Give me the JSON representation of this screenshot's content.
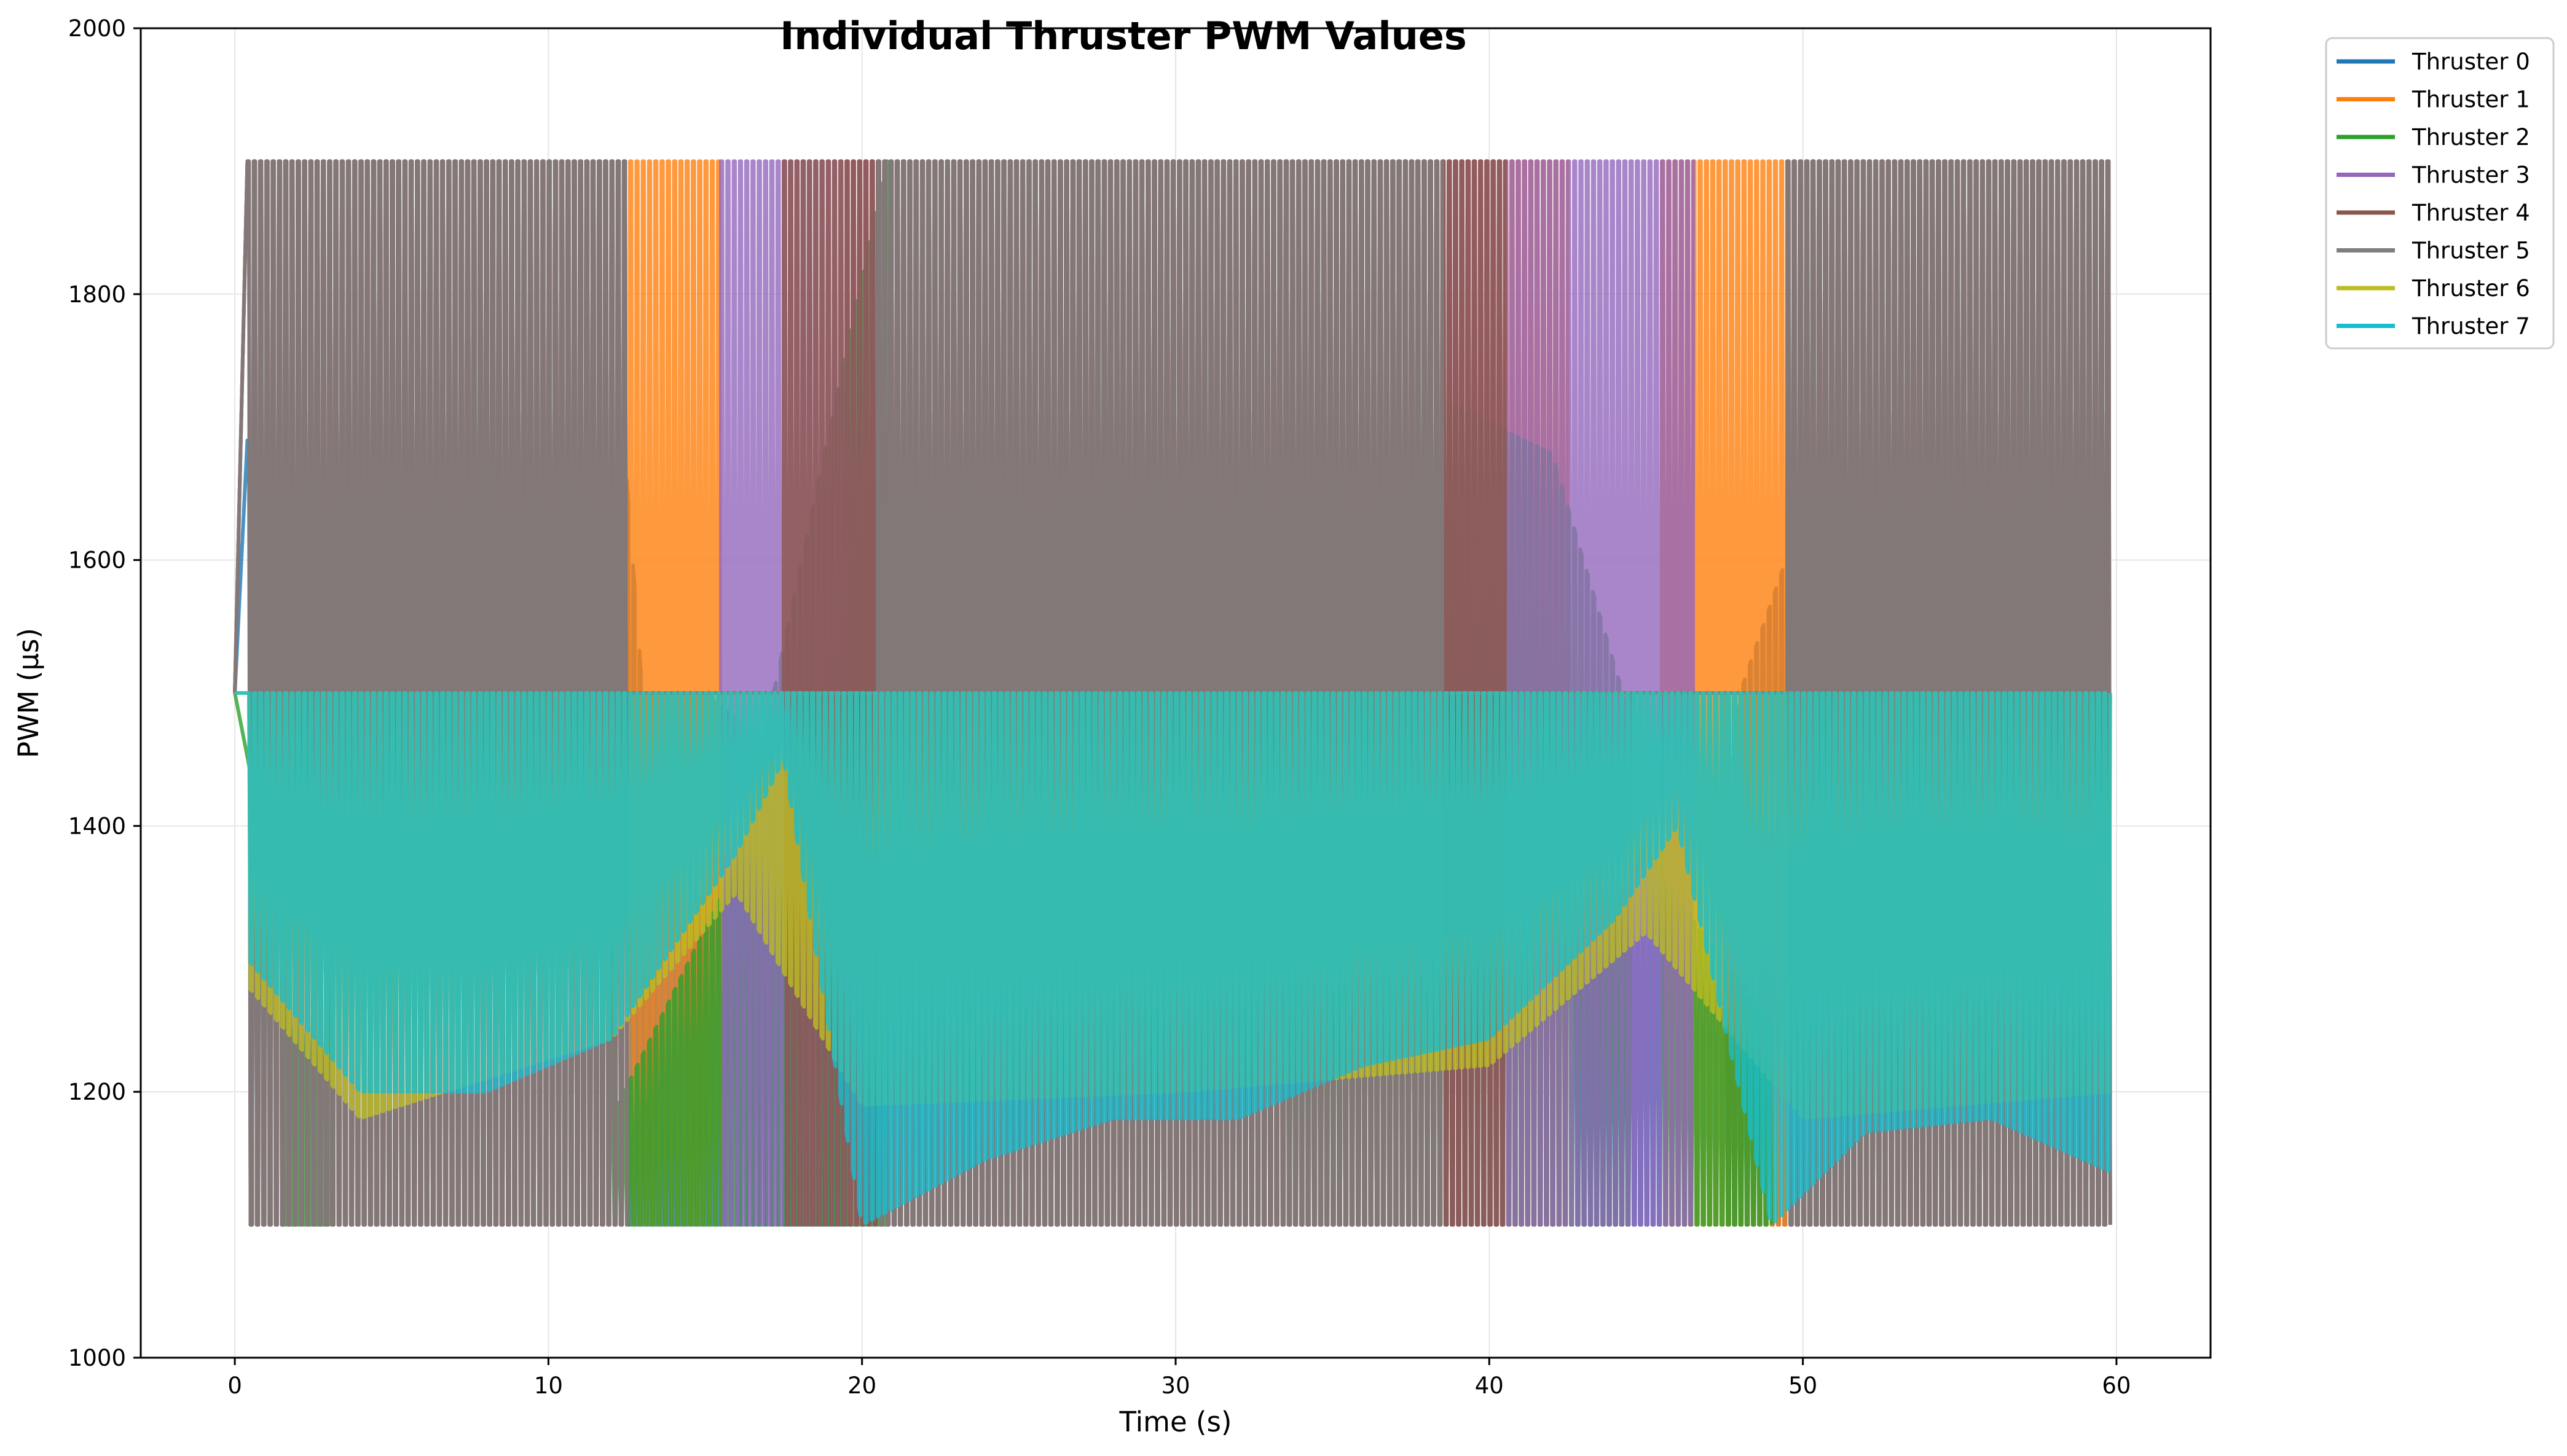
{
  "chart_data": {
    "type": "line",
    "title": "Individual Thruster PWM Values",
    "xlabel": "Time (s)",
    "ylabel": "PWM (µs)",
    "xlim": [
      -3,
      63
    ],
    "ylim": [
      1000,
      2000
    ],
    "x_ticks": [
      0,
      10,
      20,
      30,
      40,
      50,
      60
    ],
    "y_ticks": [
      1000,
      1200,
      1400,
      1600,
      1800,
      2000
    ],
    "grid": true,
    "legend_position": "outside-top-right",
    "series": [
      {
        "name": "Thruster 0",
        "color": "#1f77b4",
        "active": [
          [
            0.4,
            1.0
          ],
          [
            12.5,
            16.0
          ],
          [
            16.0,
            19.5
          ],
          [
            42.7,
            45.5
          ],
          [
            47.5,
            51.5
          ]
        ],
        "low": 1100,
        "high_env": [
          [
            0.4,
            1690
          ],
          [
            1,
            1620
          ],
          [
            4,
            1650
          ],
          [
            8,
            1710
          ],
          [
            8.8,
            1530
          ],
          [
            11,
            1590
          ],
          [
            12.5,
            1660
          ],
          [
            13,
            1500
          ],
          [
            15,
            1500
          ],
          [
            16,
            1480
          ],
          [
            19.5,
            1420
          ],
          [
            42.7,
            1310
          ],
          [
            45.5,
            1400
          ],
          [
            47.5,
            1400
          ],
          [
            48,
            1500
          ],
          [
            51.5,
            1740
          ]
        ]
      },
      {
        "name": "Thruster 1",
        "color": "#ff7f0e",
        "active": [
          [
            0.4,
            15.5
          ],
          [
            19.5,
            42.5
          ],
          [
            45.5,
            59.8
          ]
        ],
        "low": 1100,
        "high": 1900,
        "low_env": [
          [
            0.4,
            1500
          ],
          [
            2,
            1720
          ],
          [
            4,
            1520
          ],
          [
            8.5,
            1520
          ],
          [
            12.5,
            1520
          ],
          [
            15.5,
            1460
          ],
          [
            19.5,
            1170
          ],
          [
            24,
            1190
          ],
          [
            28,
            1120
          ],
          [
            32,
            1200
          ],
          [
            38,
            1250
          ],
          [
            42.5,
            1290
          ],
          [
            45.5,
            1580
          ],
          [
            50.5,
            1520
          ],
          [
            55,
            1500
          ],
          [
            59.8,
            1500
          ]
        ]
      },
      {
        "name": "Thruster 2",
        "color": "#2ca02c",
        "active": [
          [
            1.5,
            3.0
          ],
          [
            12.0,
            16.2
          ],
          [
            16.2,
            20.8
          ],
          [
            33.5,
            44.5
          ],
          [
            45.5,
            49.0
          ]
        ],
        "low": 1100,
        "high_env": [
          [
            1.5,
            1320
          ],
          [
            3,
            1280
          ],
          [
            12,
            1180
          ],
          [
            16.2,
            1380
          ],
          [
            17,
            1480
          ],
          [
            20.8,
            1900
          ],
          [
            33.5,
            1500
          ],
          [
            38.5,
            1720
          ],
          [
            42,
            1680
          ],
          [
            44.5,
            1480
          ],
          [
            45.5,
            1360
          ],
          [
            49,
            1250
          ]
        ]
      },
      {
        "name": "Thruster 3",
        "color": "#9467bd",
        "active": [
          [
            0.4,
            12.5
          ],
          [
            15.5,
            46.5
          ],
          [
            49.5,
            59.8
          ]
        ],
        "low": 1100,
        "high": 1900,
        "low_env": [
          [
            0.4,
            1300
          ],
          [
            4,
            1250
          ],
          [
            8.5,
            1240
          ],
          [
            12.5,
            1290
          ],
          [
            15.5,
            1490
          ],
          [
            17.5,
            1600
          ],
          [
            21.5,
            1520
          ],
          [
            25.8,
            1570
          ],
          [
            30,
            1560
          ],
          [
            34.3,
            1630
          ],
          [
            38.5,
            1520
          ],
          [
            42.5,
            1500
          ],
          [
            46.5,
            1450
          ],
          [
            49.5,
            1200
          ],
          [
            55,
            1200
          ],
          [
            59.8,
            1220
          ]
        ]
      },
      {
        "name": "Thruster 4",
        "color": "#8c564b",
        "active": [
          [
            0.4,
            12.5
          ],
          [
            17.5,
            40.5
          ],
          [
            49.5,
            59.8
          ]
        ],
        "low": 1100,
        "high": 1900,
        "low_env": [
          [
            0.4,
            1320
          ],
          [
            4,
            1260
          ],
          [
            8.5,
            1240
          ],
          [
            12.5,
            1300
          ],
          [
            17.5,
            1550
          ],
          [
            21.5,
            1530
          ],
          [
            25.8,
            1580
          ],
          [
            30,
            1560
          ],
          [
            34.3,
            1640
          ],
          [
            38.5,
            1520
          ],
          [
            40.5,
            1600
          ],
          [
            49.5,
            1200
          ],
          [
            55,
            1200
          ],
          [
            59.8,
            1220
          ]
        ]
      },
      {
        "name": "Thruster 5",
        "color": "#7f7f7f",
        "active": [
          [
            0.4,
            12.5
          ],
          [
            20.5,
            38.5
          ],
          [
            49.5,
            59.8
          ]
        ],
        "low": 1100,
        "high": 1900,
        "low_env": [
          [
            0.4,
            1310
          ],
          [
            4,
            1250
          ],
          [
            8.5,
            1240
          ],
          [
            12.5,
            1300
          ],
          [
            20.5,
            1540
          ],
          [
            25.8,
            1580
          ],
          [
            30,
            1560
          ],
          [
            34.3,
            1640
          ],
          [
            38.5,
            1530
          ],
          [
            49.5,
            1200
          ],
          [
            55,
            1200
          ],
          [
            59.8,
            1220
          ]
        ]
      },
      {
        "name": "Thruster 6",
        "color": "#bcbd22",
        "active": [
          [
            0.4,
            59.8
          ]
        ],
        "low_env": [
          [
            0.4,
            1280
          ],
          [
            4,
            1180
          ],
          [
            12,
            1240
          ],
          [
            16,
            1350
          ],
          [
            20,
            1190
          ],
          [
            30,
            1200
          ],
          [
            40,
            1220
          ],
          [
            45,
            1320
          ],
          [
            50,
            1180
          ],
          [
            59.8,
            1200
          ]
        ],
        "high_env": [
          [
            0.4,
            1500
          ],
          [
            59.8,
            1500
          ]
        ]
      },
      {
        "name": "Thruster 7",
        "color": "#17becf",
        "active": [
          [
            0.4,
            59.8
          ]
        ],
        "low_env": [
          [
            0.4,
            1300
          ],
          [
            4,
            1200
          ],
          [
            8,
            1200
          ],
          [
            12,
            1240
          ],
          [
            16,
            1380
          ],
          [
            17.5,
            1450
          ],
          [
            20,
            1100
          ],
          [
            24,
            1150
          ],
          [
            28,
            1180
          ],
          [
            32,
            1180
          ],
          [
            36,
            1220
          ],
          [
            40,
            1240
          ],
          [
            44,
            1330
          ],
          [
            46,
            1400
          ],
          [
            49,
            1100
          ],
          [
            52,
            1170
          ],
          [
            56,
            1180
          ],
          [
            59.8,
            1140
          ]
        ],
        "high_env": [
          [
            0.4,
            1500
          ],
          [
            59.8,
            1500
          ]
        ]
      }
    ]
  }
}
